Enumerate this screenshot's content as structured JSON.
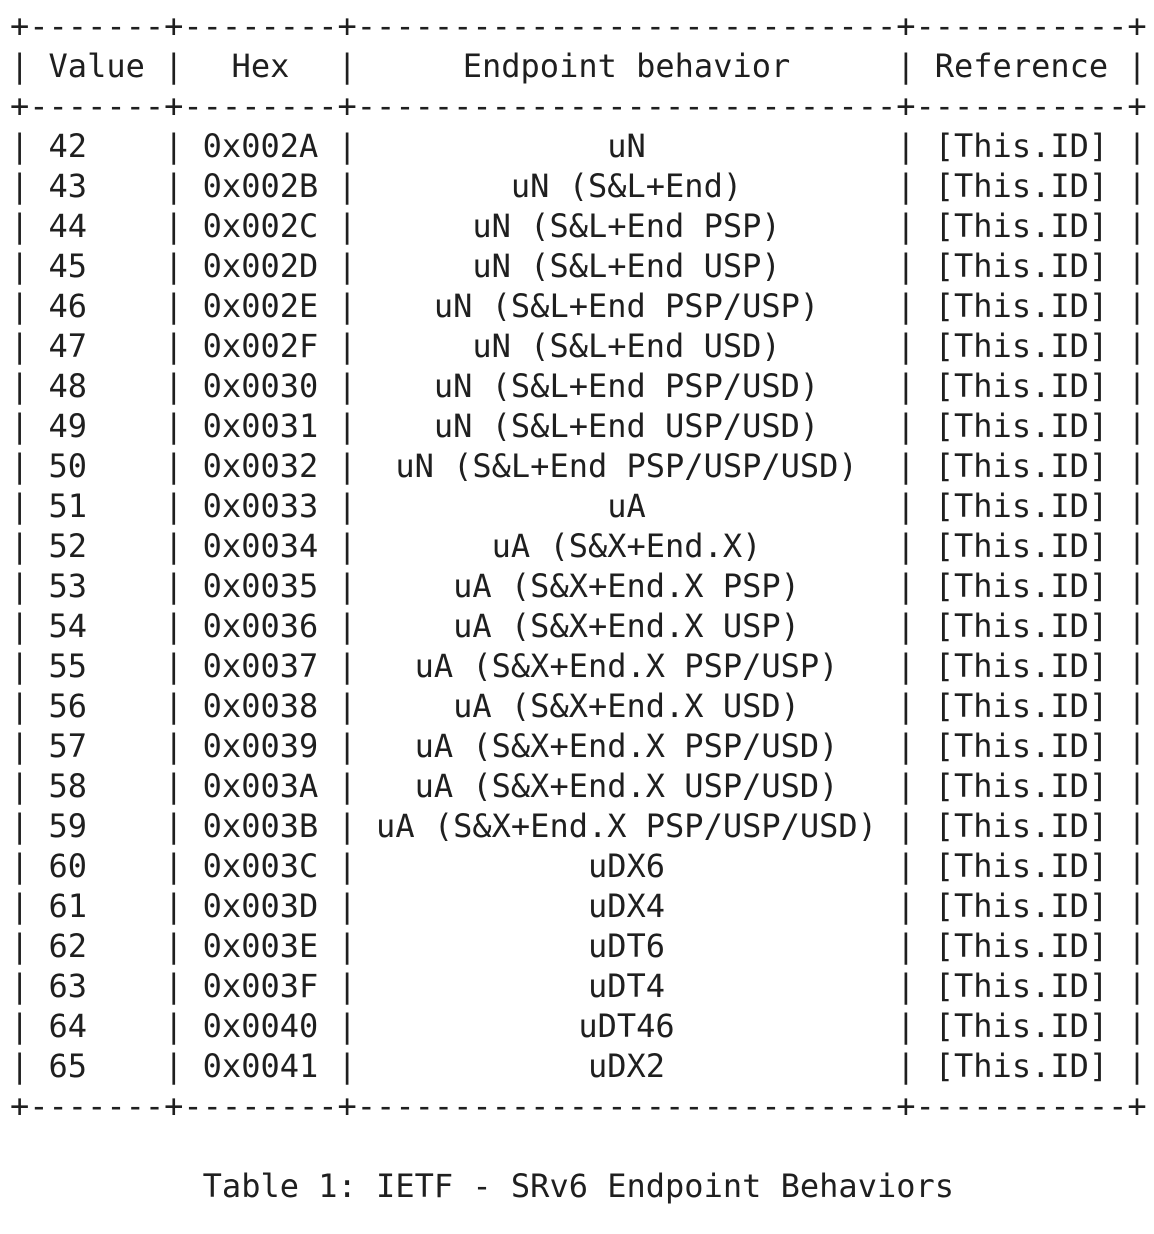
{
  "table": {
    "headers": [
      "Value",
      "Hex",
      "Endpoint behavior",
      "Reference"
    ],
    "rows": [
      [
        "42",
        "0x002A",
        "uN",
        "[This.ID]"
      ],
      [
        "43",
        "0x002B",
        "uN (S&L+End)",
        "[This.ID]"
      ],
      [
        "44",
        "0x002C",
        "uN (S&L+End PSP)",
        "[This.ID]"
      ],
      [
        "45",
        "0x002D",
        "uN (S&L+End USP)",
        "[This.ID]"
      ],
      [
        "46",
        "0x002E",
        "uN (S&L+End PSP/USP)",
        "[This.ID]"
      ],
      [
        "47",
        "0x002F",
        "uN (S&L+End USD)",
        "[This.ID]"
      ],
      [
        "48",
        "0x0030",
        "uN (S&L+End PSP/USD)",
        "[This.ID]"
      ],
      [
        "49",
        "0x0031",
        "uN (S&L+End USP/USD)",
        "[This.ID]"
      ],
      [
        "50",
        "0x0032",
        "uN (S&L+End PSP/USP/USD)",
        "[This.ID]"
      ],
      [
        "51",
        "0x0033",
        "uA",
        "[This.ID]"
      ],
      [
        "52",
        "0x0034",
        "uA (S&X+End.X)",
        "[This.ID]"
      ],
      [
        "53",
        "0x0035",
        "uA (S&X+End.X PSP)",
        "[This.ID]"
      ],
      [
        "54",
        "0x0036",
        "uA (S&X+End.X USP)",
        "[This.ID]"
      ],
      [
        "55",
        "0x0037",
        "uA (S&X+End.X PSP/USP)",
        "[This.ID]"
      ],
      [
        "56",
        "0x0038",
        "uA (S&X+End.X USD)",
        "[This.ID]"
      ],
      [
        "57",
        "0x0039",
        "uA (S&X+End.X PSP/USD)",
        "[This.ID]"
      ],
      [
        "58",
        "0x003A",
        "uA (S&X+End.X USP/USD)",
        "[This.ID]"
      ],
      [
        "59",
        "0x003B",
        "uA (S&X+End.X PSP/USP/USD)",
        "[This.ID]"
      ],
      [
        "60",
        "0x003C",
        "uDX6",
        "[This.ID]"
      ],
      [
        "61",
        "0x003D",
        "uDX4",
        "[This.ID]"
      ],
      [
        "62",
        "0x003E",
        "uDT6",
        "[This.ID]"
      ],
      [
        "63",
        "0x003F",
        "uDT4",
        "[This.ID]"
      ],
      [
        "64",
        "0x0040",
        "uDT46",
        "[This.ID]"
      ],
      [
        "65",
        "0x0041",
        "uDX2",
        "[This.ID]"
      ]
    ]
  },
  "caption": "Table 1: IETF - SRv6 Endpoint Behaviors"
}
